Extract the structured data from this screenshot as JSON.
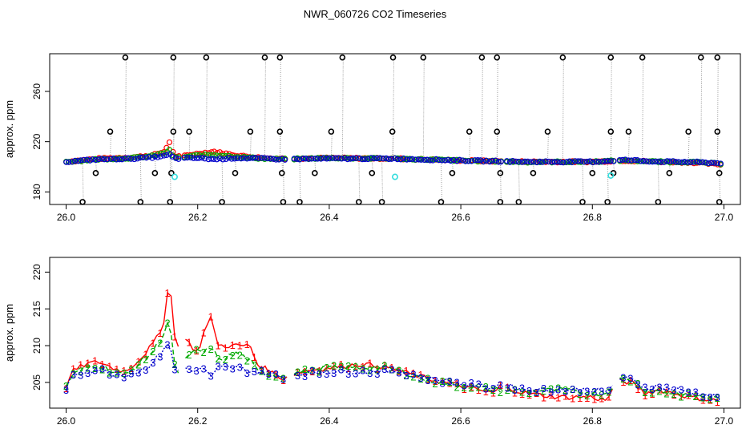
{
  "title": "NWR_060726  CO2 Timeseries",
  "chart_data": [
    {
      "type": "scatter",
      "ylabel": "approx. ppm",
      "xlim": [
        26.0,
        27.0
      ],
      "ylim": [
        170,
        290
      ],
      "xticks": [
        "26.0",
        "26.2",
        "26.4",
        "26.6",
        "26.8",
        "27.0"
      ],
      "yticks": [
        "180",
        "220",
        "260"
      ],
      "spikes_high": [
        26.09,
        26.163,
        26.213,
        26.302,
        26.325,
        26.42,
        26.497,
        26.543,
        26.632,
        26.655,
        26.755,
        26.828,
        26.876,
        26.965,
        26.99
      ],
      "spikes_low": [
        26.025,
        26.113,
        26.158,
        26.237,
        26.33,
        26.355,
        26.445,
        26.48,
        26.57,
        26.66,
        26.688,
        26.785,
        26.823,
        26.9,
        26.993
      ],
      "spikes_mid_high": [
        26.067,
        26.163,
        26.187,
        26.28,
        26.325,
        26.403,
        26.496,
        26.613,
        26.655,
        26.732,
        26.828,
        26.855,
        26.946,
        26.99
      ],
      "spikes_mid_low": [
        26.045,
        26.135,
        26.16,
        26.257,
        26.328,
        26.378,
        26.465,
        26.587,
        26.66,
        26.71,
        26.8,
        26.832,
        26.917,
        26.993
      ],
      "cyan_points": [
        [
          26.165,
          192
        ],
        [
          26.5,
          192
        ],
        [
          26.828,
          193
        ]
      ],
      "series": [
        {
          "marker": "o",
          "color": "#ff0000",
          "x": [
            26.0,
            26.05,
            26.1,
            26.13,
            26.15,
            26.157,
            26.165,
            26.2,
            26.225,
            26.26,
            26.3,
            26.33,
            26.4,
            26.5,
            26.6,
            26.7,
            26.8,
            26.85,
            26.9,
            26.95,
            26.99
          ],
          "y": [
            204,
            206.5,
            207.5,
            209,
            212,
            220,
            207.5,
            210.5,
            212,
            209,
            207,
            206.5,
            207,
            206.5,
            205,
            204,
            204,
            205,
            204,
            203.5,
            202
          ]
        },
        {
          "marker": "o",
          "color": "#00aa00",
          "x": [
            26.0,
            26.05,
            26.1,
            26.13,
            26.15,
            26.157,
            26.165,
            26.2,
            26.225,
            26.26,
            26.3,
            26.33,
            26.4,
            26.5,
            26.6,
            26.7,
            26.8,
            26.85,
            26.9,
            26.95,
            26.99
          ],
          "y": [
            204,
            206,
            207,
            208.5,
            211,
            213.5,
            207,
            209,
            209.5,
            208,
            206.5,
            206,
            207,
            206.5,
            205,
            203.8,
            204,
            205.2,
            204,
            203.8,
            202.5
          ]
        },
        {
          "marker": "o",
          "color": "#0000cc",
          "x": [
            26.0,
            26.05,
            26.1,
            26.13,
            26.15,
            26.157,
            26.165,
            26.2,
            26.225,
            26.26,
            26.3,
            26.33,
            26.4,
            26.5,
            26.6,
            26.7,
            26.8,
            26.85,
            26.9,
            26.95,
            26.99
          ],
          "y": [
            204,
            206,
            206.5,
            207.5,
            208.5,
            210,
            206.5,
            207,
            206,
            207,
            206.5,
            206,
            206.5,
            206.5,
            205,
            204,
            204,
            205.4,
            204.2,
            203.8,
            203
          ]
        }
      ]
    },
    {
      "type": "line",
      "ylabel": "approx. ppm",
      "xlim": [
        26.0,
        27.0
      ],
      "ylim": [
        201.5,
        222
      ],
      "xticks": [
        "26.0",
        "26.2",
        "26.4",
        "26.6",
        "26.8",
        "27.0"
      ],
      "yticks": [
        "205",
        "210",
        "215",
        "220"
      ],
      "series": [
        {
          "marker": "1",
          "color": "#ff0000",
          "x": [
            26.0,
            26.01,
            26.03,
            26.05,
            26.07,
            26.09,
            26.11,
            26.13,
            26.145,
            26.15,
            26.157,
            26.163,
            26.168,
            26.18,
            26.2,
            26.21,
            26.222,
            26.23,
            26.26,
            26.28,
            26.29,
            26.32,
            26.33,
            26.34,
            26.36,
            26.4,
            26.45,
            26.49,
            26.51,
            26.55,
            26.6,
            26.65,
            26.66,
            26.7,
            26.75,
            26.8,
            26.82,
            26.84,
            26.86,
            26.88,
            26.9,
            26.95,
            26.99
          ],
          "y": [
            204.5,
            206.5,
            207.5,
            207.8,
            207,
            206.5,
            208,
            210,
            212,
            214,
            220,
            212,
            210,
            211,
            209,
            212,
            214,
            210,
            210,
            210,
            207.5,
            206,
            205.5,
            206,
            206.5,
            207,
            207.5,
            207,
            206.5,
            205.5,
            204.5,
            203.5,
            204.5,
            203.5,
            203,
            203,
            202.5,
            205.2,
            205,
            203.5,
            204,
            203,
            202.5
          ]
        },
        {
          "marker": "2",
          "color": "#00aa00",
          "x": [
            26.0,
            26.01,
            26.03,
            26.05,
            26.07,
            26.09,
            26.11,
            26.13,
            26.145,
            26.15,
            26.157,
            26.163,
            26.168,
            26.18,
            26.2,
            26.21,
            26.222,
            26.23,
            26.26,
            26.28,
            26.29,
            26.32,
            26.33,
            26.34,
            26.36,
            26.4,
            26.45,
            26.49,
            26.51,
            26.55,
            26.6,
            26.65,
            26.66,
            26.7,
            26.75,
            26.8,
            26.82,
            26.84,
            26.86,
            26.88,
            26.9,
            26.95,
            26.99
          ],
          "y": [
            204.5,
            206,
            207,
            207.3,
            206.5,
            206,
            207.5,
            209,
            211,
            212,
            214,
            208,
            206,
            208,
            209.5,
            209,
            210,
            208,
            209,
            208,
            206.5,
            206,
            205.8,
            206.2,
            206.5,
            207,
            207,
            207,
            206.5,
            205.3,
            204.6,
            204,
            204,
            203.8,
            204,
            203.5,
            203.5,
            205.4,
            205.3,
            204,
            203.8,
            203.2,
            202.8
          ]
        },
        {
          "marker": "3",
          "color": "#0000cc",
          "x": [
            26.0,
            26.01,
            26.03,
            26.05,
            26.07,
            26.09,
            26.11,
            26.13,
            26.145,
            26.15,
            26.157,
            26.163,
            26.168,
            26.18,
            26.2,
            26.21,
            26.222,
            26.23,
            26.26,
            26.28,
            26.29,
            26.32,
            26.33,
            26.34,
            26.36,
            26.4,
            26.45,
            26.49,
            26.51,
            26.55,
            26.6,
            26.65,
            26.66,
            26.7,
            26.75,
            26.8,
            26.82,
            26.84,
            26.86,
            26.88,
            26.9,
            26.95,
            26.99
          ],
          "y": [
            204.3,
            205.8,
            206.5,
            206.8,
            206.2,
            206,
            206.5,
            207.5,
            209,
            210,
            210.5,
            207,
            206.5,
            207,
            206.5,
            207,
            205.5,
            207,
            207,
            206.5,
            206.5,
            206,
            205.5,
            206,
            206.2,
            206.5,
            206.5,
            206.5,
            206.5,
            205.6,
            204.8,
            204.3,
            204.8,
            204,
            204,
            204,
            203.6,
            205.5,
            205.4,
            204.3,
            204.4,
            203.7,
            203
          ]
        }
      ]
    }
  ]
}
